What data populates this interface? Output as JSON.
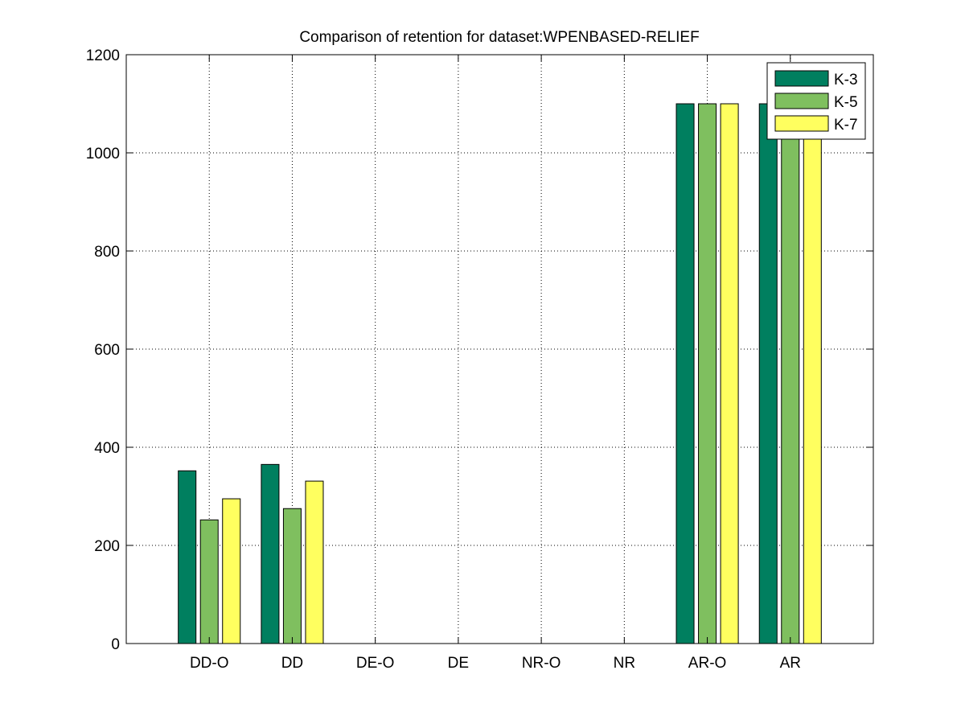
{
  "chart_data": {
    "type": "bar",
    "title": "Comparison of retention for dataset:WPENBASED-RELIEF",
    "xlabel": "",
    "ylabel": "",
    "categories": [
      "DD-O",
      "DD",
      "DE-O",
      "DE",
      "NR-O",
      "NR",
      "AR-O",
      "AR"
    ],
    "ylim": [
      0,
      1200
    ],
    "yticks": [
      0,
      200,
      400,
      600,
      800,
      1000,
      1200
    ],
    "grid": true,
    "legend_position": "top-right",
    "series": [
      {
        "name": "K-3",
        "color": "#007f5f",
        "values": [
          352,
          365,
          0,
          0,
          0,
          0,
          1100,
          1100
        ]
      },
      {
        "name": "K-5",
        "color": "#7fbf5f",
        "values": [
          252,
          275,
          0,
          0,
          0,
          0,
          1100,
          1100
        ]
      },
      {
        "name": "K-7",
        "color": "#ffff5f",
        "values": [
          295,
          331,
          0,
          0,
          0,
          0,
          1100,
          1100
        ]
      }
    ]
  }
}
